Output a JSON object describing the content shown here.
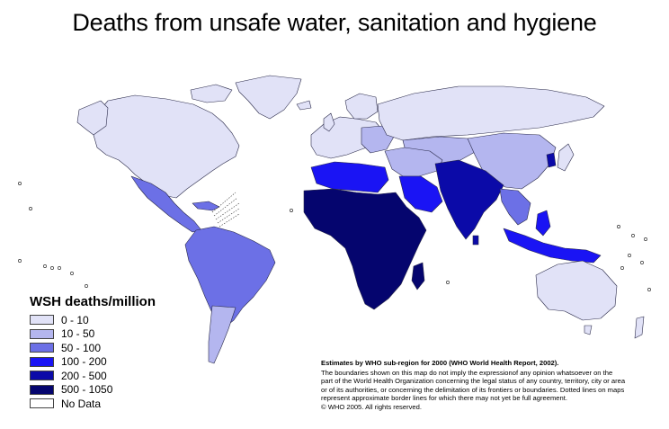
{
  "title": "Deaths from unsafe water, sanitation and hygiene",
  "legend": {
    "title": "WSH deaths/million",
    "items": [
      {
        "label": "0 - 10",
        "color": "#e1e2f7"
      },
      {
        "label": "10 - 50",
        "color": "#b4b6ef"
      },
      {
        "label": "50 - 100",
        "color": "#6c70e6"
      },
      {
        "label": "100 - 200",
        "color": "#1a14f4"
      },
      {
        "label": "200 - 500",
        "color": "#0b0aa8"
      },
      {
        "label": "500 - 1050",
        "color": "#05056e"
      },
      {
        "label": "No Data",
        "color": "#ffffff"
      }
    ]
  },
  "note": {
    "line1": "Estimates by WHO sub-region for 2000 (WHO World Health Report, 2002).",
    "line2": "The boundaries shown on this map do not imply the expressionof any opinion whatsoever on the",
    "line3": " part of the World Health Organization concerning the legal status of any country, territory, city or area",
    "line4": "or of its authorities, or concerning the delimitation of its frontiers or boundaries.  Dotted lines on maps",
    "line5": "represent approximate border lines for which there may not yet be full agreement.",
    "line6": "© WHO 2005. All rights reserved."
  },
  "regions": {
    "north_america": "#e1e2f7",
    "greenland": "#e1e2f7",
    "central_america": "#6c70e6",
    "south_america": "#6c70e6",
    "south_america_south": "#b4b6ef",
    "europe": "#e1e2f7",
    "eastern_europe": "#b4b6ef",
    "russia": "#e1e2f7",
    "north_africa": "#1a14f4",
    "sub_saharan_africa": "#05056e",
    "middle_east": "#b4b6ef",
    "arabia": "#1a14f4",
    "south_asia": "#0b0aa8",
    "central_asia": "#b4b6ef",
    "china": "#b4b6ef",
    "southeast_asia": "#6c70e6",
    "indonesia": "#1a14f4",
    "australia": "#e1e2f7",
    "japan": "#e1e2f7",
    "korea": "#0b0aa8"
  }
}
